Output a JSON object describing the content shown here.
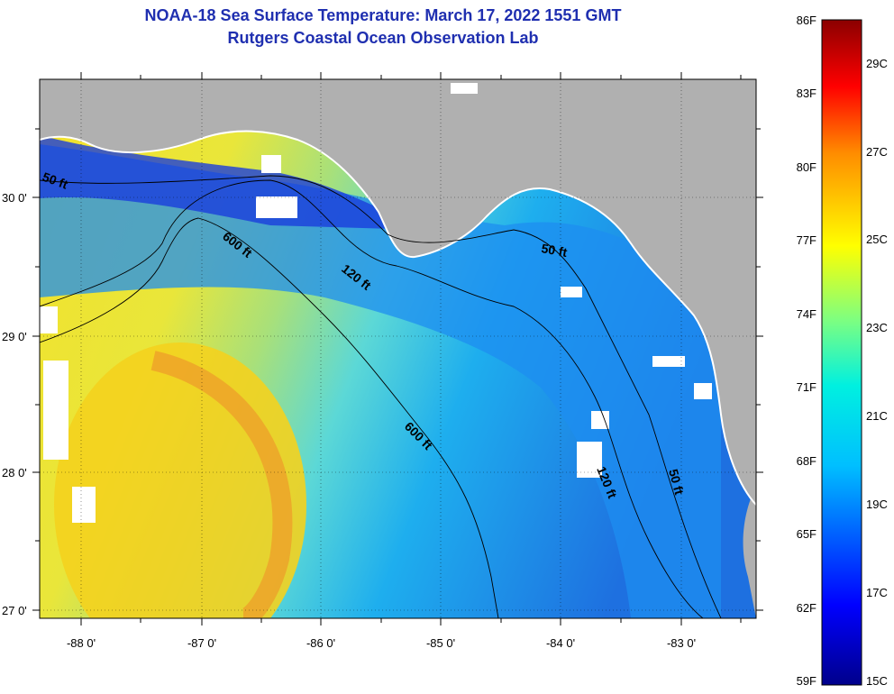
{
  "header": {
    "title": "NOAA-18 Sea Surface Temperature:  March 17, 2022 1551 GMT",
    "subtitle": "Rutgers Coastal Ocean Observation Lab"
  },
  "map": {
    "x_ticks": [
      "-88 0'",
      "-87 0'",
      "-86 0'",
      "-85 0'",
      "-84 0'",
      "-83 0'"
    ],
    "y_ticks": [
      "30 0'",
      "29 0'",
      "28 0'",
      "27 0'"
    ],
    "contour_labels": [
      "50 ft",
      "600 ft",
      "120 ft",
      "50 ft",
      "600 ft",
      "120 ft",
      "50 ft"
    ],
    "colors": {
      "land": "#b0b0b0",
      "cloud": "#ffffff"
    }
  },
  "colorbar": {
    "f_labels": [
      "86F",
      "83F",
      "80F",
      "77F",
      "74F",
      "71F",
      "68F",
      "65F",
      "62F",
      "59F"
    ],
    "c_labels": [
      "29C",
      "27C",
      "25C",
      "23C",
      "21C",
      "19C",
      "17C",
      "15C"
    ]
  }
}
